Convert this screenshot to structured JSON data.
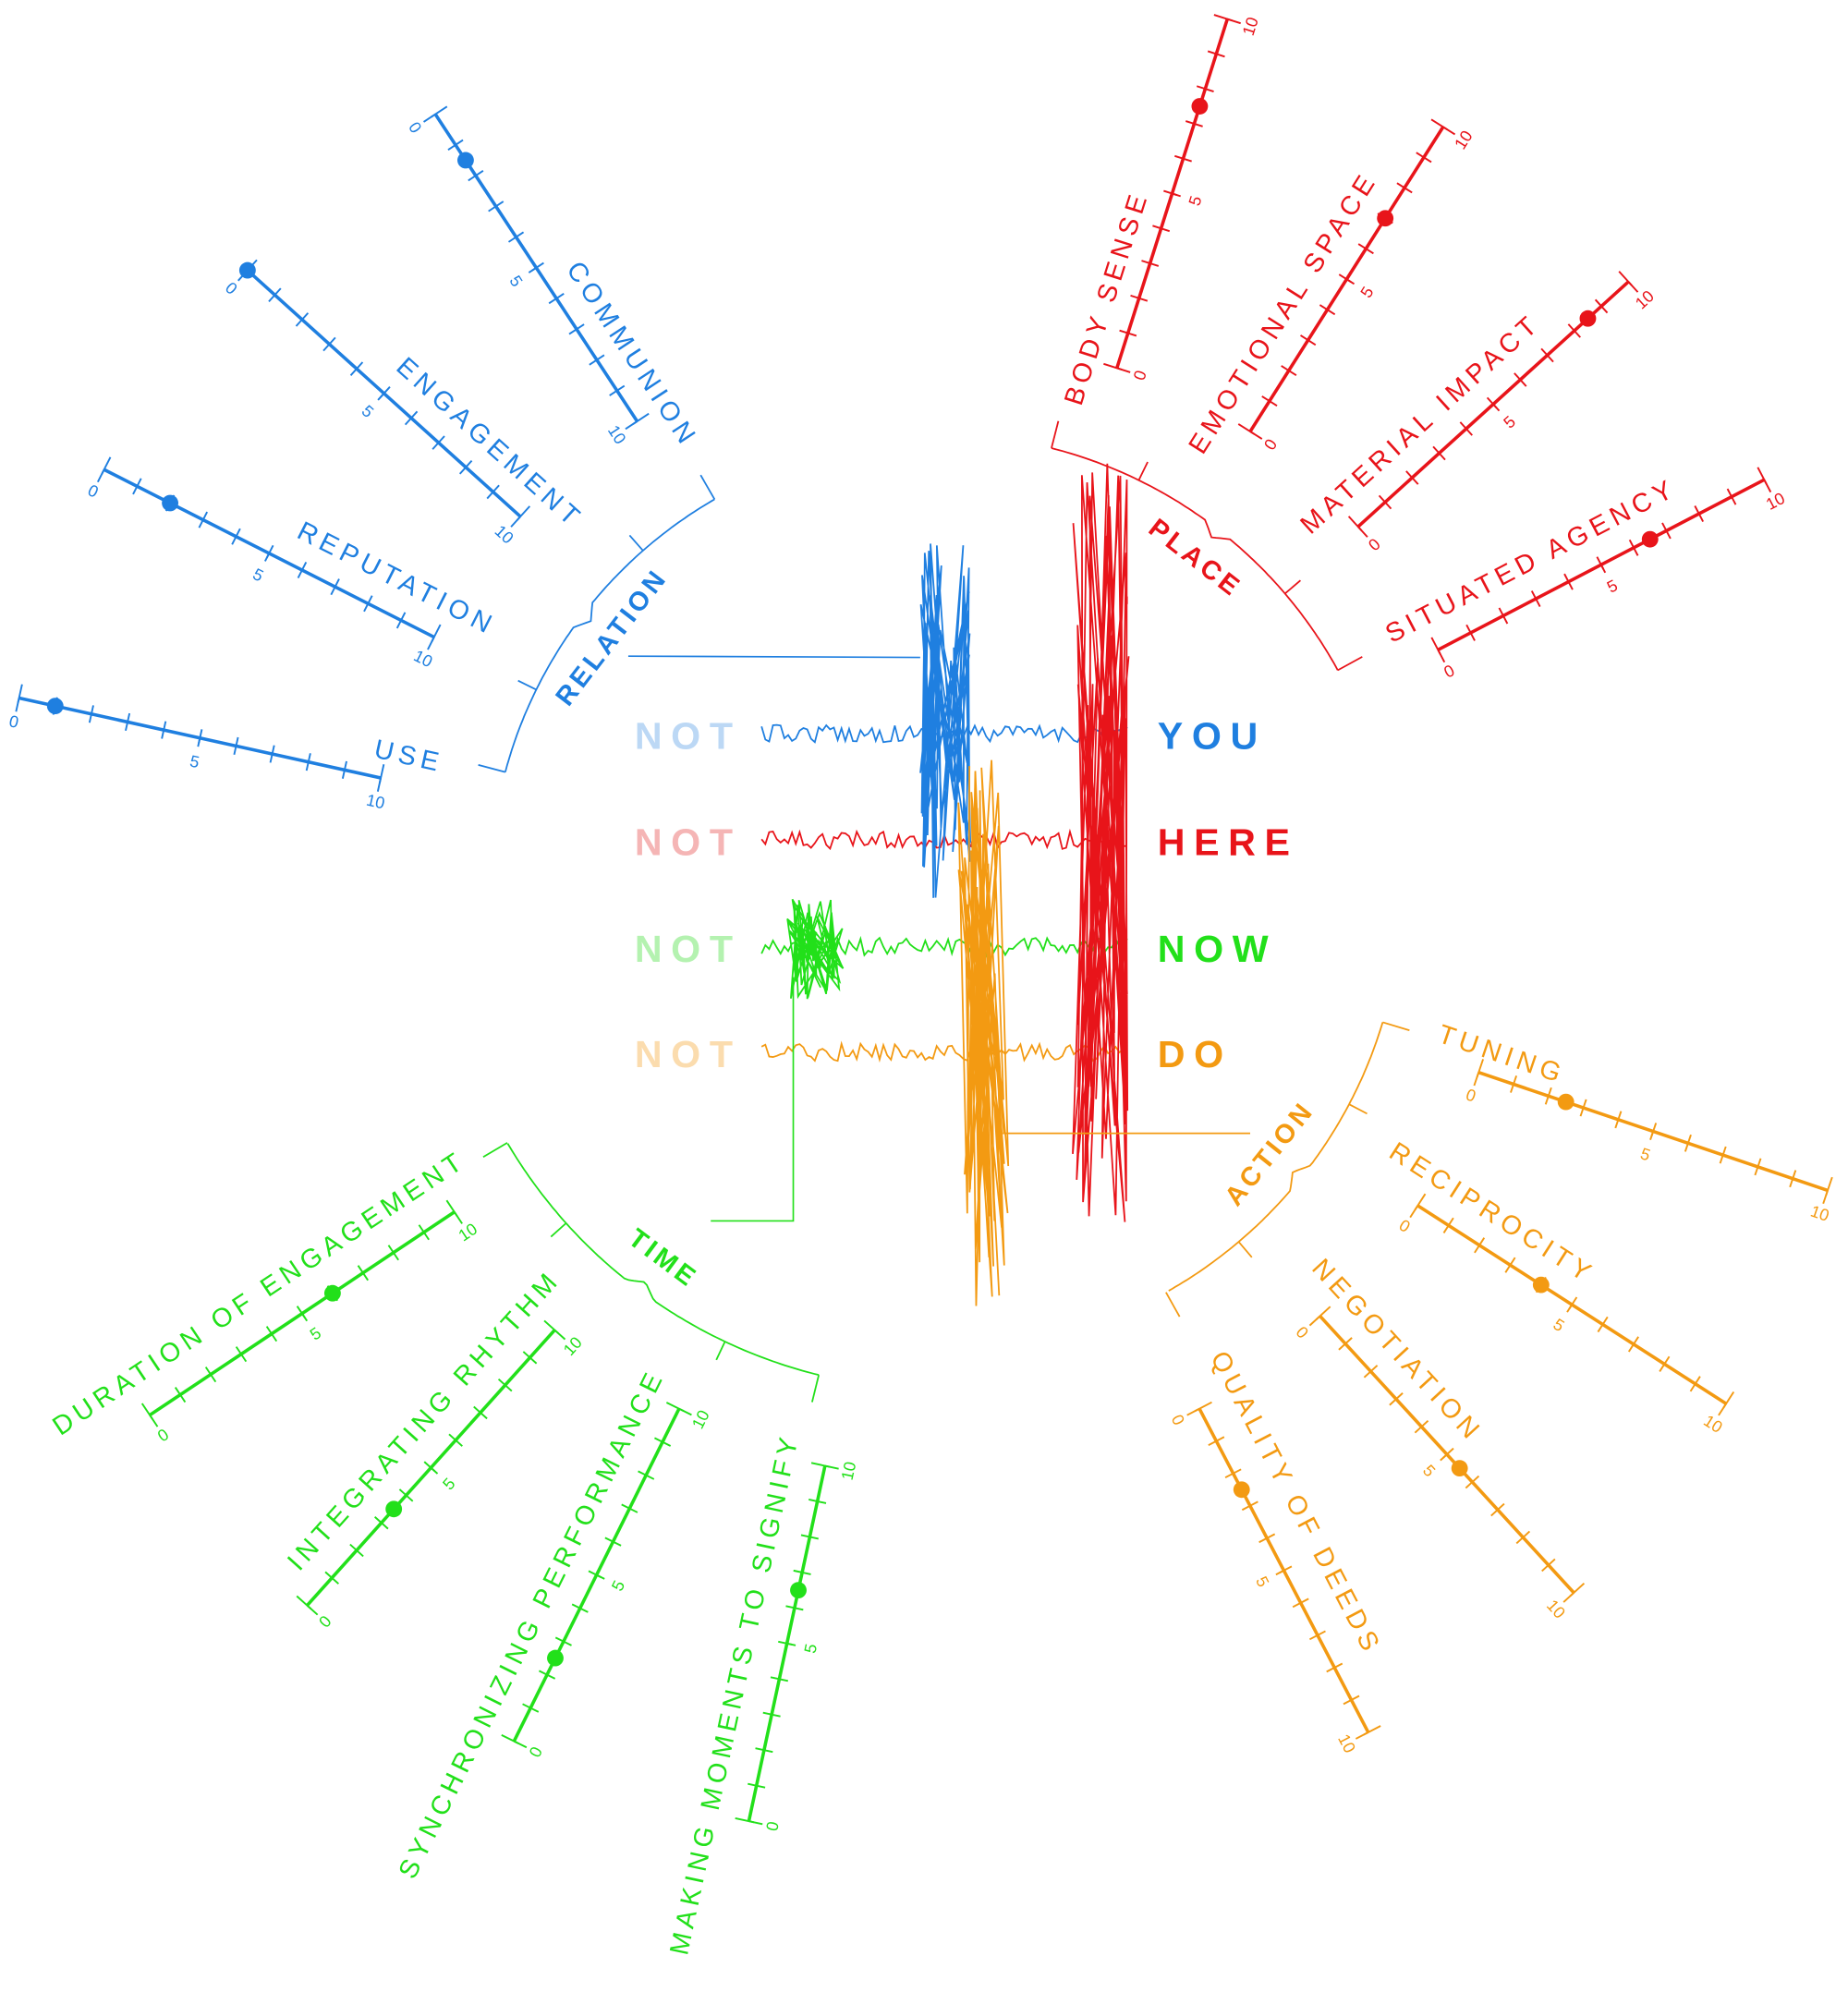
{
  "scale": {
    "ticks": [
      0,
      5,
      10
    ]
  },
  "center": {
    "rows": [
      {
        "not": "NOT",
        "word": "YOU",
        "color": "#1f7fe0",
        "faded": "#bcd8f5"
      },
      {
        "not": "NOT",
        "word": "HERE",
        "color": "#e8141a",
        "faded": "#f5b5b5"
      },
      {
        "not": "NOT",
        "word": "NOW",
        "color": "#22e01a",
        "faded": "#b4f2b0"
      },
      {
        "not": "NOT",
        "word": "DO",
        "color": "#f39a12",
        "faded": "#fbdcae"
      }
    ]
  },
  "groups": [
    {
      "label": "RELATION",
      "color": "#1f7fe0",
      "axes": [
        {
          "name": "COMMUNION",
          "value": 1.5
        },
        {
          "name": "ENGAGEMENT",
          "value": 0
        },
        {
          "name": "REPUTATION",
          "value": 2
        },
        {
          "name": "USE",
          "value": 1
        }
      ]
    },
    {
      "label": "PLACE",
      "color": "#e8141a",
      "axes": [
        {
          "name": "BODY SENSE",
          "value": 7.5
        },
        {
          "name": "EMOTIONAL SPACE",
          "value": 7
        },
        {
          "name": "MATERIAL IMPACT",
          "value": 8.5
        },
        {
          "name": "SITUATED AGENCY",
          "value": 6.5
        }
      ]
    },
    {
      "label": "TIME",
      "color": "#22e01a",
      "axes": [
        {
          "name": "DURATION OF ENGAGEMENT",
          "value": 6
        },
        {
          "name": "INTEGRATING RHYTHM",
          "value": 3.5
        },
        {
          "name": "SYNCHRONIZING PERFORMANCE",
          "value": 2.5
        },
        {
          "name": "MAKING MOMENTS TO SIGNIFY",
          "value": 6.5
        }
      ]
    },
    {
      "label": "ACTION",
      "color": "#f39a12",
      "axes": [
        {
          "name": "TUNING",
          "value": 2.5
        },
        {
          "name": "RECIPROCITY",
          "value": 4
        },
        {
          "name": "NEGOTIATION",
          "value": 5.5
        },
        {
          "name": "QUALITY OF DEEDS",
          "value": 2.5
        }
      ]
    }
  ]
}
